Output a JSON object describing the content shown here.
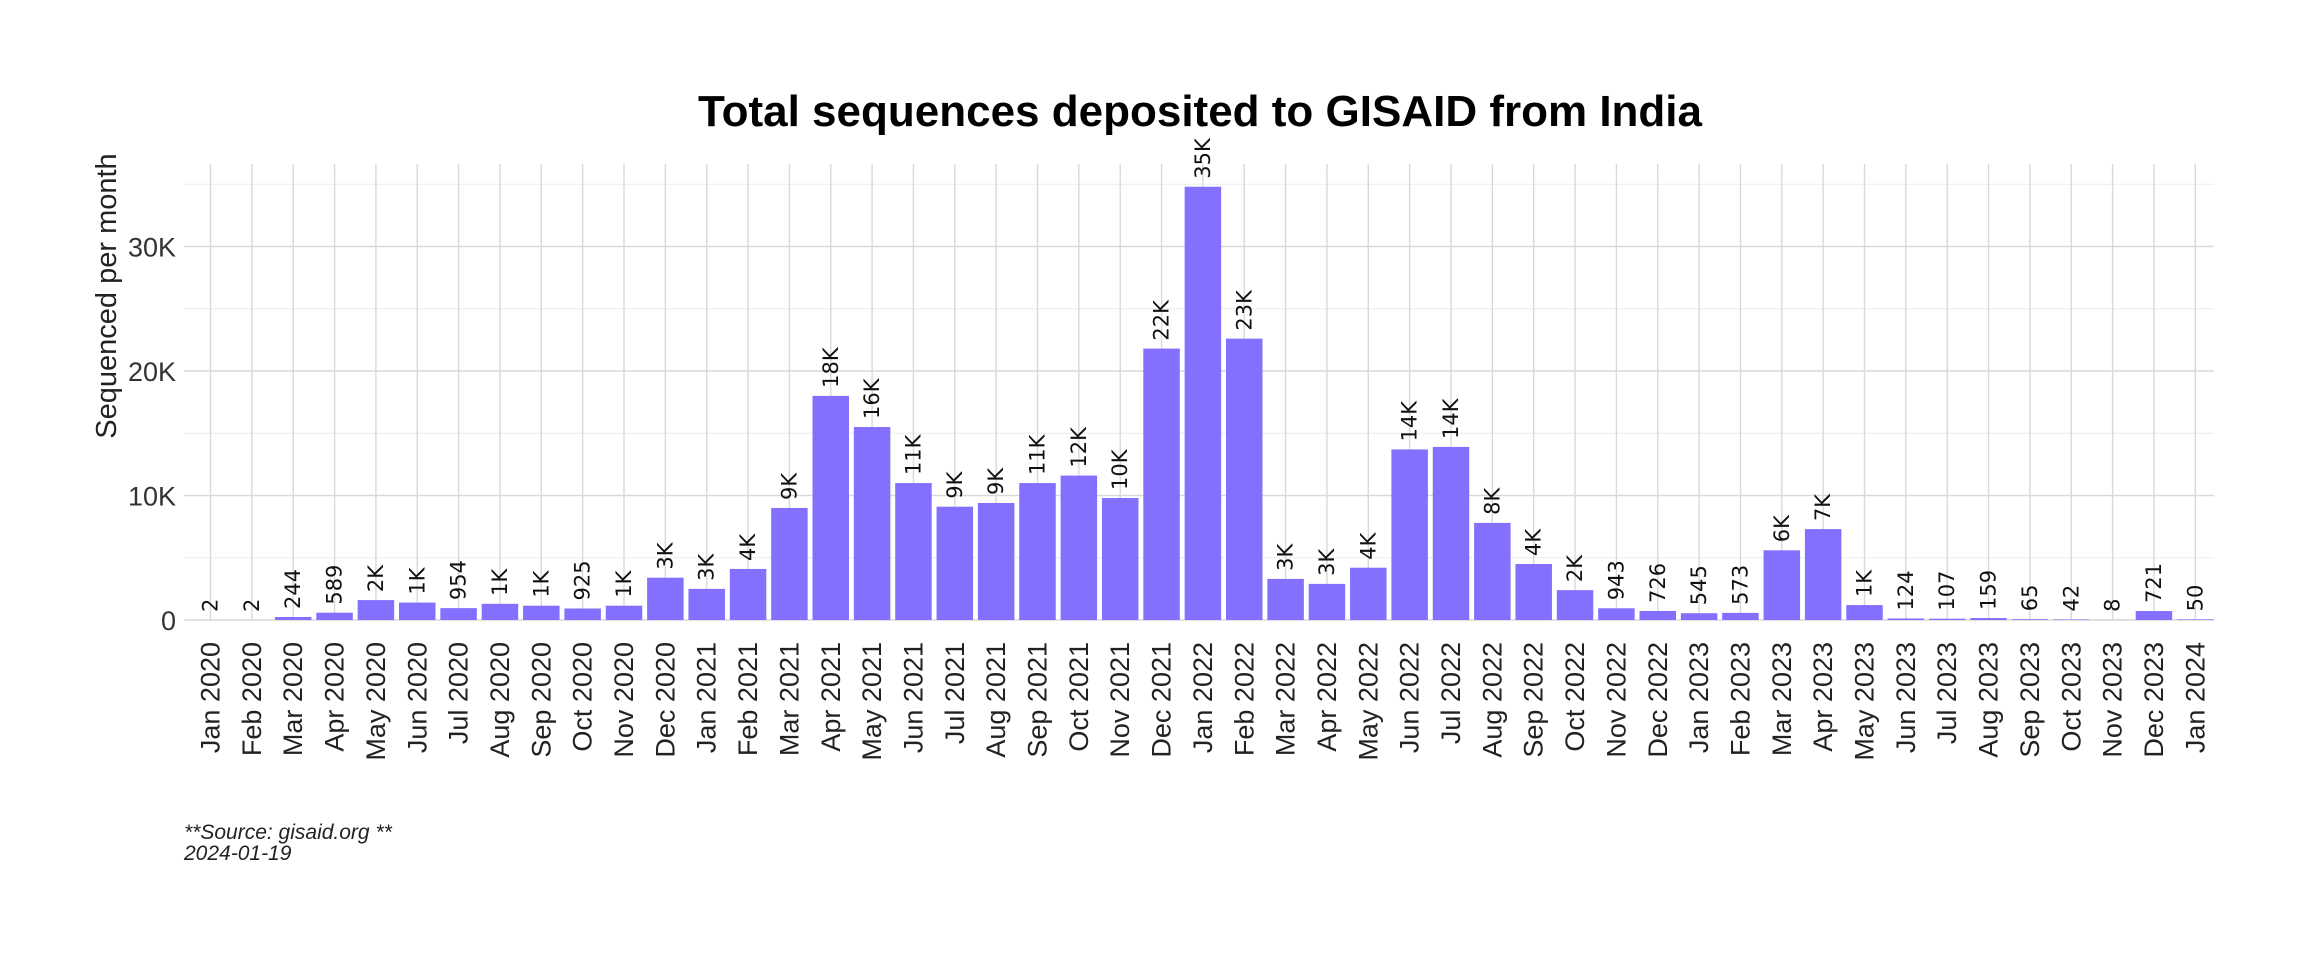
{
  "chart_data": {
    "type": "bar",
    "title": "Total sequences deposited to GISAID from India",
    "xlabel": "",
    "ylabel": "Sequenced per month",
    "ylim": [
      0,
      36500
    ],
    "yticks": [
      0,
      10000,
      20000,
      30000
    ],
    "ytick_labels": [
      "0",
      "10K",
      "20K",
      "30K"
    ],
    "grid": true,
    "bar_color": "#8470ff",
    "categories": [
      "Jan 2020",
      "Feb 2020",
      "Mar 2020",
      "Apr 2020",
      "May 2020",
      "Jun 2020",
      "Jul 2020",
      "Aug 2020",
      "Sep 2020",
      "Oct 2020",
      "Nov 2020",
      "Dec 2020",
      "Jan 2021",
      "Feb 2021",
      "Mar 2021",
      "Apr 2021",
      "May 2021",
      "Jun 2021",
      "Jul 2021",
      "Aug 2021",
      "Sep 2021",
      "Oct 2021",
      "Nov 2021",
      "Dec 2021",
      "Jan 2022",
      "Feb 2022",
      "Mar 2022",
      "Apr 2022",
      "May 2022",
      "Jun 2022",
      "Jul 2022",
      "Aug 2022",
      "Sep 2022",
      "Oct 2022",
      "Nov 2022",
      "Dec 2022",
      "Jan 2023",
      "Feb 2023",
      "Mar 2023",
      "Apr 2023",
      "May 2023",
      "Jun 2023",
      "Jul 2023",
      "Aug 2023",
      "Sep 2023",
      "Oct 2023",
      "Nov 2023",
      "Dec 2023",
      "Jan 2024"
    ],
    "values": [
      2,
      2,
      244,
      589,
      1600,
      1400,
      954,
      1300,
      1150,
      925,
      1150,
      3400,
      2500,
      4100,
      9000,
      18000,
      15500,
      11000,
      9100,
      9400,
      11000,
      11600,
      9800,
      21800,
      34800,
      22600,
      3300,
      2900,
      4200,
      13700,
      13900,
      7800,
      4500,
      2400,
      943,
      726,
      545,
      573,
      5600,
      7300,
      1200,
      124,
      107,
      159,
      65,
      42,
      8,
      721,
      50
    ],
    "data_labels": [
      "2",
      "2",
      "244",
      "589",
      "2K",
      "1K",
      "954",
      "1K",
      "1K",
      "925",
      "1K",
      "3K",
      "3K",
      "4K",
      "9K",
      "18K",
      "16K",
      "11K",
      "9K",
      "9K",
      "11K",
      "12K",
      "10K",
      "22K",
      "35K",
      "23K",
      "3K",
      "3K",
      "4K",
      "14K",
      "14K",
      "8K",
      "4K",
      "2K",
      "943",
      "726",
      "545",
      "573",
      "6K",
      "7K",
      "1K",
      "124",
      "107",
      "159",
      "65",
      "42",
      "8",
      "721",
      "50"
    ]
  },
  "caption": {
    "source": "**Source: gisaid.org **",
    "date": "2024-01-19"
  }
}
